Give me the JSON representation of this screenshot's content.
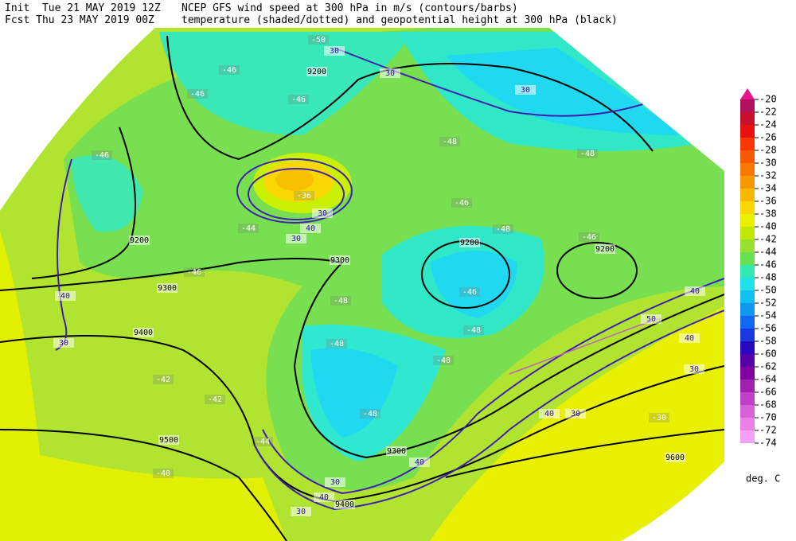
{
  "header": {
    "init": "Init  Tue 21 MAY 2019 12Z",
    "fcst": "Fcst Thu 23 MAY 2019 00Z",
    "title1": "NCEP GFS wind speed at 300 hPa in m/s (contours/barbs)",
    "title2": "temperature (shaded/dotted) and geopotential height at 300 hPa (black)"
  },
  "map": {
    "height_labels": [
      9200,
      9200,
      9200,
      9200,
      9300,
      9300,
      9400,
      9500,
      9300,
      9400,
      9600
    ],
    "wind_labels": [
      30,
      30,
      30,
      40,
      30,
      30,
      40,
      30,
      40,
      50,
      40,
      30,
      40,
      30,
      40,
      30,
      40,
      30
    ],
    "temperature_labels": [
      -50,
      -46,
      -46,
      -46,
      -46,
      -48,
      -48,
      -36,
      -46,
      -48,
      -46,
      -44,
      -46,
      -46,
      -48,
      -48,
      -48,
      -44,
      -42,
      -42,
      -40,
      -48,
      -48,
      -30
    ]
  },
  "colorbar": {
    "levels": [
      -20,
      -22,
      -24,
      -26,
      -28,
      -30,
      -32,
      -34,
      -36,
      -38,
      -40,
      -42,
      -44,
      -46,
      -48,
      -50,
      -52,
      -54,
      -56,
      -58,
      -60,
      -62,
      -64,
      -66,
      -68,
      -70,
      -72,
      -74
    ],
    "colors": [
      "#e8168c",
      "#b0105e",
      "#c8102e",
      "#e81010",
      "#f83800",
      "#f85800",
      "#f87800",
      "#f89800",
      "#f8b800",
      "#f8d800",
      "#e8f000",
      "#c0e800",
      "#98e030",
      "#68e050",
      "#30e8b0",
      "#20e0e8",
      "#10c0f0",
      "#1098f0",
      "#1068f0",
      "#1838e0",
      "#2808c0",
      "#5800a8",
      "#8000a0",
      "#a020b0",
      "#c040c8",
      "#d860d8",
      "#e880e8",
      "#f8a0f8"
    ],
    "unit": "deg. C"
  }
}
